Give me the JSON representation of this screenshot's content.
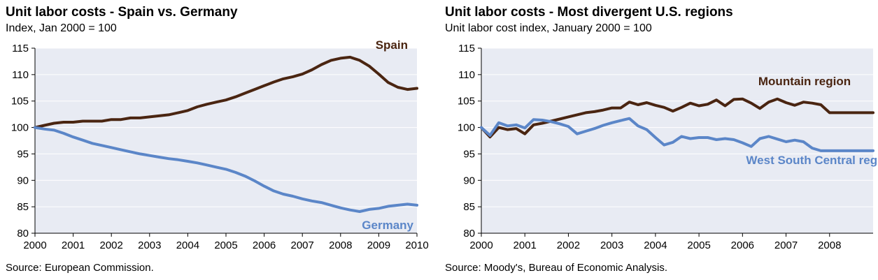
{
  "colors": {
    "brown": "#4a2511",
    "blue": "#5b86c8",
    "plot_bg": "#e8ebf3",
    "grid": "#ffffff",
    "axis": "#000000"
  },
  "chart_data": [
    {
      "type": "line",
      "title": "Unit labor costs - Spain vs. Germany",
      "subtitle": "Index, Jan 2000 = 100",
      "source": "Source: European Commission.",
      "xlim": [
        2000,
        2010
      ],
      "ylim": [
        80,
        115
      ],
      "x_ticks": [
        "2000",
        "2001",
        "2002",
        "2003",
        "2004",
        "2005",
        "2006",
        "2007",
        "2008",
        "2009",
        "2010"
      ],
      "y_ticks": [
        "80",
        "85",
        "90",
        "95",
        "100",
        "105",
        "110",
        "115"
      ],
      "series": [
        {
          "name": "Spain",
          "color": "brown",
          "label_pos": "top-right",
          "x": [
            2000,
            2000.25,
            2000.5,
            2000.75,
            2001,
            2001.25,
            2001.5,
            2001.75,
            2002,
            2002.25,
            2002.5,
            2002.75,
            2003,
            2003.25,
            2003.5,
            2003.75,
            2004,
            2004.25,
            2004.5,
            2004.75,
            2005,
            2005.25,
            2005.5,
            2005.75,
            2006,
            2006.25,
            2006.5,
            2006.75,
            2007,
            2007.25,
            2007.5,
            2007.75,
            2008,
            2008.25,
            2008.5,
            2008.75,
            2009,
            2009.25,
            2009.5,
            2009.75,
            2010
          ],
          "y": [
            100,
            100.4,
            100.8,
            101,
            101,
            101.2,
            101.2,
            101.2,
            101.5,
            101.5,
            101.8,
            101.8,
            102,
            102.2,
            102.4,
            102.8,
            103.2,
            103.9,
            104.4,
            104.8,
            105.2,
            105.8,
            106.5,
            107.2,
            107.9,
            108.6,
            109.2,
            109.6,
            110.1,
            110.9,
            111.9,
            112.7,
            113.1,
            113.3,
            112.7,
            111.6,
            110.1,
            108.5,
            107.6,
            107.2,
            107.4
          ]
        },
        {
          "name": "Germany",
          "color": "blue",
          "label_pos": "bottom-right",
          "x": [
            2000,
            2000.25,
            2000.5,
            2000.75,
            2001,
            2001.25,
            2001.5,
            2001.75,
            2002,
            2002.25,
            2002.5,
            2002.75,
            2003,
            2003.25,
            2003.5,
            2003.75,
            2004,
            2004.25,
            2004.5,
            2004.75,
            2005,
            2005.25,
            2005.5,
            2005.75,
            2006,
            2006.25,
            2006.5,
            2006.75,
            2007,
            2007.25,
            2007.5,
            2007.75,
            2008,
            2008.25,
            2008.5,
            2008.75,
            2009,
            2009.25,
            2009.5,
            2009.75,
            2010
          ],
          "y": [
            100,
            99.7,
            99.5,
            98.9,
            98.2,
            97.6,
            97,
            96.6,
            96.2,
            95.8,
            95.4,
            95,
            94.7,
            94.4,
            94.1,
            93.9,
            93.6,
            93.3,
            92.9,
            92.5,
            92.1,
            91.5,
            90.8,
            89.9,
            88.9,
            88,
            87.4,
            87,
            86.5,
            86.1,
            85.8,
            85.3,
            84.8,
            84.4,
            84.1,
            84.5,
            84.7,
            85.1,
            85.3,
            85.5,
            85.3
          ]
        }
      ]
    },
    {
      "type": "line",
      "title": "Unit labor costs - Most divergent U.S. regions",
      "subtitle": "Unit labor cost index, January 2000 = 100",
      "source": "Source: Moody's, Bureau of Economic Analysis.",
      "xlim": [
        2000,
        2009
      ],
      "ylim": [
        80,
        115
      ],
      "x_ticks": [
        "2000",
        "2001",
        "2002",
        "2003",
        "2004",
        "2005",
        "2006",
        "2007",
        "2008"
      ],
      "y_ticks": [
        "80",
        "85",
        "90",
        "95",
        "100",
        "105",
        "110",
        "115"
      ],
      "series": [
        {
          "name": "Mountain region",
          "color": "brown",
          "label_pos": "upper-center",
          "x": [
            2000,
            2000.2,
            2000.4,
            2000.6,
            2000.8,
            2001,
            2001.2,
            2001.4,
            2001.6,
            2001.8,
            2002,
            2002.2,
            2002.4,
            2002.6,
            2002.8,
            2003,
            2003.2,
            2003.4,
            2003.6,
            2003.8,
            2004,
            2004.2,
            2004.4,
            2004.6,
            2004.8,
            2005,
            2005.2,
            2005.4,
            2005.6,
            2005.8,
            2006,
            2006.2,
            2006.4,
            2006.6,
            2006.8,
            2007,
            2007.2,
            2007.4,
            2007.6,
            2007.8,
            2008,
            2008.2,
            2008.4,
            2008.6,
            2008.8,
            2009
          ],
          "y": [
            100,
            98.2,
            100,
            99.6,
            99.8,
            98.8,
            100.5,
            100.8,
            101.2,
            101.6,
            102,
            102.4,
            102.8,
            103,
            103.3,
            103.7,
            103.7,
            104.8,
            104.3,
            104.7,
            104.2,
            103.8,
            103.1,
            103.8,
            104.6,
            104.1,
            104.4,
            105.2,
            104.1,
            105.3,
            105.4,
            104.6,
            103.6,
            104.8,
            105.4,
            104.7,
            104.2,
            104.8,
            104.6,
            104.3,
            102.8,
            102.8,
            102.8,
            102.8,
            102.8,
            102.8
          ]
        },
        {
          "name": "West South Central  region",
          "color": "blue",
          "label_pos": "lower-right",
          "x": [
            2000,
            2000.2,
            2000.4,
            2000.6,
            2000.8,
            2001,
            2001.2,
            2001.4,
            2001.6,
            2001.8,
            2002,
            2002.2,
            2002.4,
            2002.6,
            2002.8,
            2003,
            2003.2,
            2003.4,
            2003.6,
            2003.8,
            2004,
            2004.2,
            2004.4,
            2004.6,
            2004.8,
            2005,
            2005.2,
            2005.4,
            2005.6,
            2005.8,
            2006,
            2006.2,
            2006.4,
            2006.6,
            2006.8,
            2007,
            2007.2,
            2007.4,
            2007.6,
            2007.8,
            2008,
            2008.2,
            2008.4,
            2008.6,
            2008.8,
            2009
          ],
          "y": [
            100,
            98.5,
            100.9,
            100.3,
            100.5,
            99.9,
            101.5,
            101.4,
            101.1,
            100.7,
            100.2,
            98.8,
            99.3,
            99.8,
            100.4,
            100.9,
            101.3,
            101.7,
            100.3,
            99.6,
            98.1,
            96.7,
            97.2,
            98.3,
            97.9,
            98.1,
            98.1,
            97.7,
            97.9,
            97.7,
            97.1,
            96.4,
            97.9,
            98.3,
            97.8,
            97.3,
            97.6,
            97.3,
            96.1,
            95.6,
            95.6,
            95.6,
            95.6,
            95.6,
            95.6,
            95.6
          ]
        }
      ]
    }
  ]
}
